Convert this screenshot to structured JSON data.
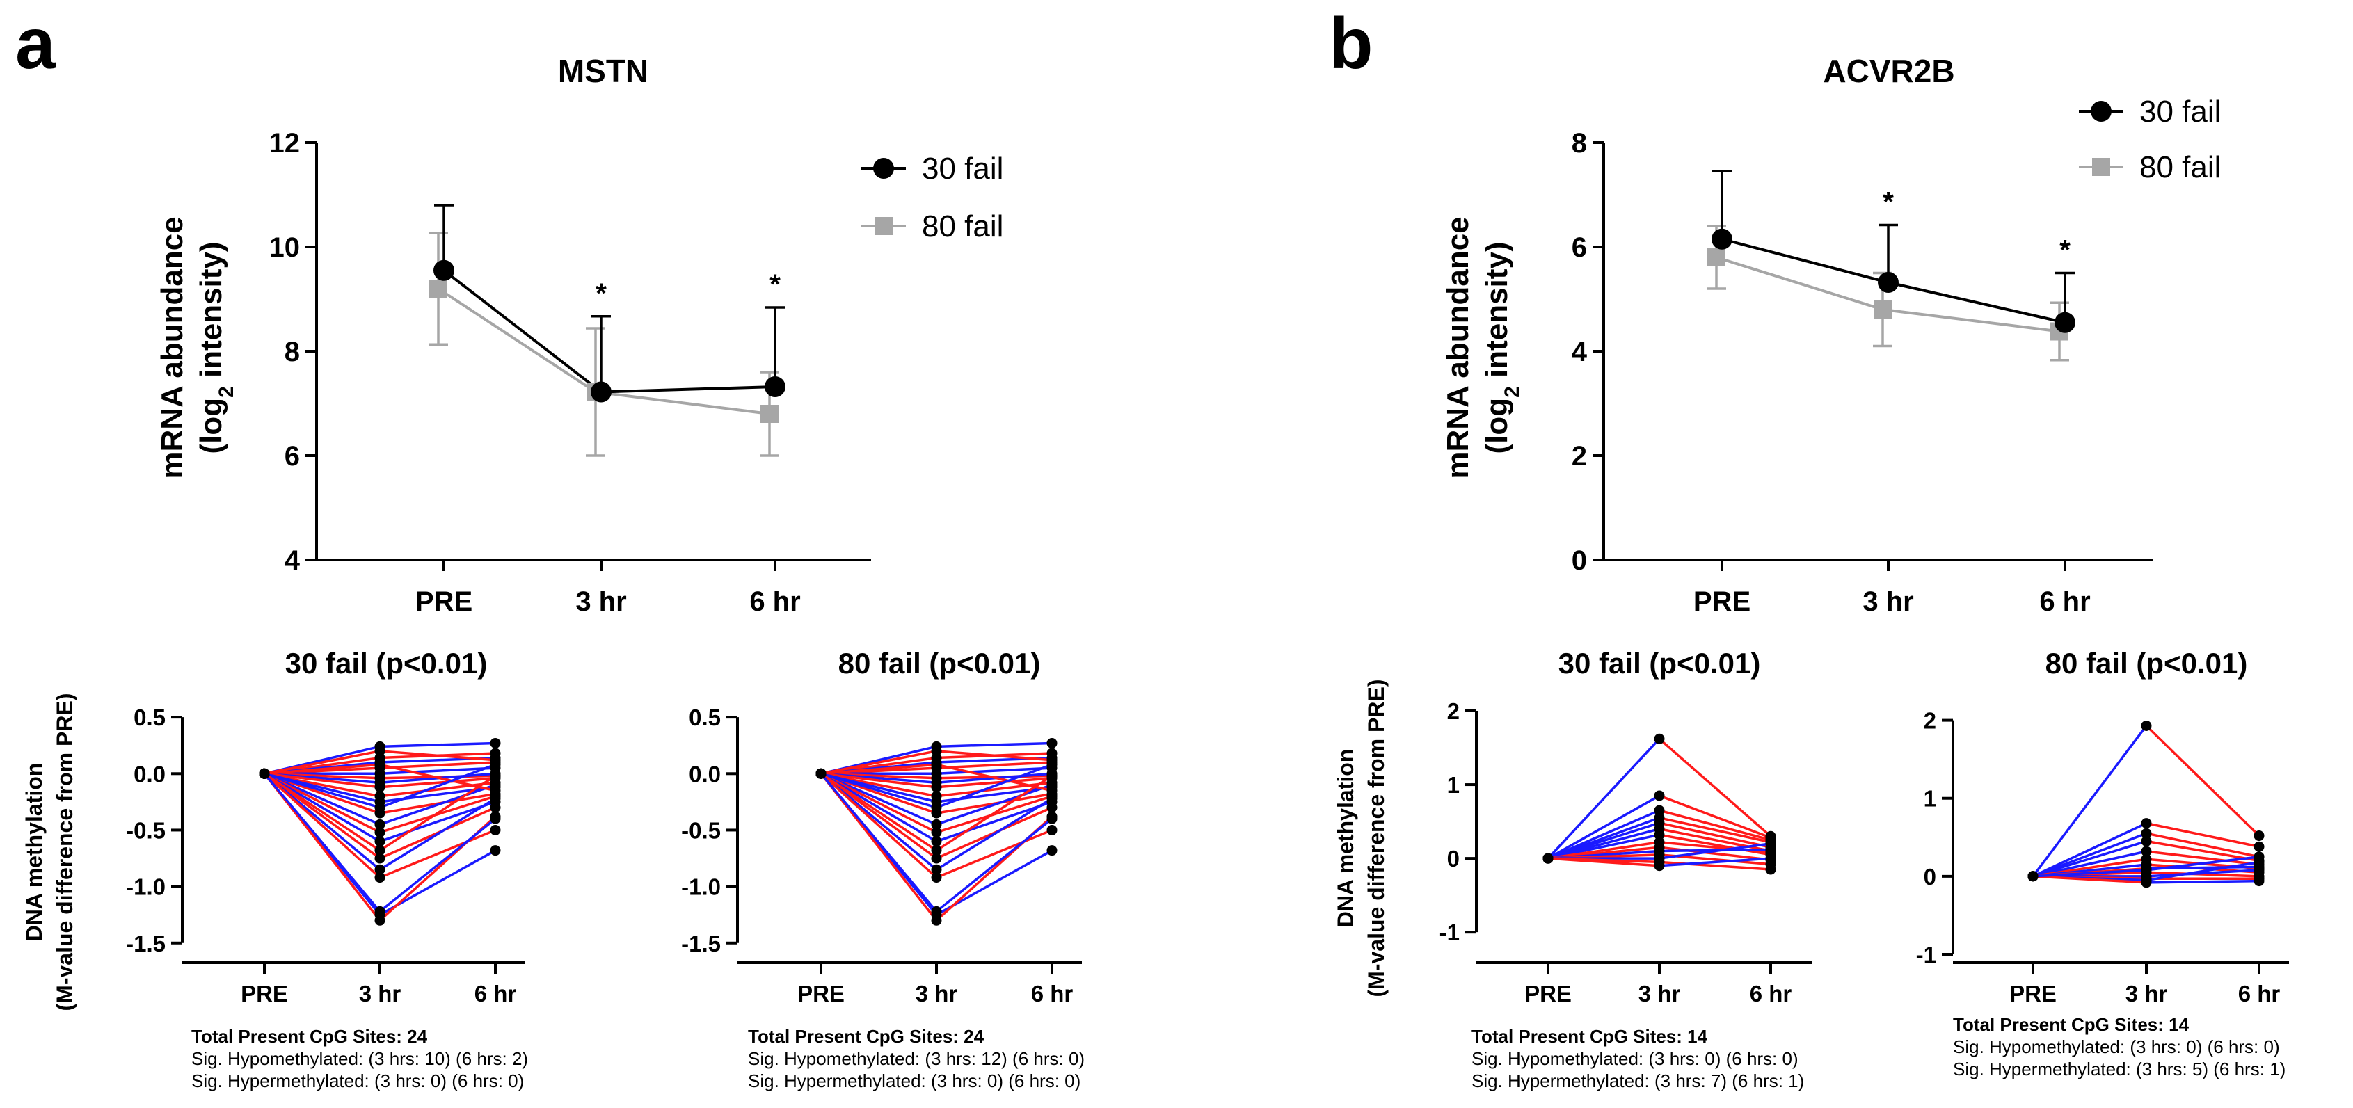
{
  "colors": {
    "black": "#000000",
    "gray": "#a6a6a6",
    "hypo": "#ff1a1a",
    "hyper": "#1a1aff"
  },
  "panel_a": {
    "letter": "a",
    "footnote": {
      "left": {
        "total": "Total Present CpG Sites: 24",
        "hypo": "Sig. Hypomethylated: (3 hrs: 10) (6 hrs: 2)",
        "hyper": "Sig. Hypermethylated: (3 hrs: 0) (6 hrs: 0)"
      },
      "right": {
        "total": "Total Present CpG Sites: 24",
        "hypo": "Sig. Hypomethylated: (3 hrs: 12) (6 hrs: 0)",
        "hyper": "Sig. Hypermethylated: (3 hrs: 0) (6 hrs: 0)"
      }
    }
  },
  "panel_b": {
    "letter": "b",
    "footnote": {
      "left": {
        "total": "Total Present CpG Sites: 14",
        "hypo": "Sig. Hypomethylated: (3 hrs: 0) (6 hrs: 0)",
        "hyper": "Sig. Hypermethylated: (3 hrs: 7) (6 hrs: 1)"
      },
      "right": {
        "total": "Total Present CpG Sites: 14",
        "hypo": "Sig. Hypomethylated: (3 hrs: 0) (6 hrs: 0)",
        "hyper": "Sig. Hypermethylated: (3 hrs: 5) (6 hrs: 1)"
      }
    }
  },
  "chart_data": [
    {
      "id": "mstn-mrna",
      "type": "line",
      "title": "MSTN",
      "xlabel": "",
      "ylabel": [
        "mRNA abundance",
        "(log",
        "2",
        " intensity)"
      ],
      "categories": [
        "PRE",
        "3 hr",
        "6 hr"
      ],
      "ylim": [
        4,
        12
      ],
      "yticks": [
        4,
        6,
        8,
        10,
        12
      ],
      "grid": false,
      "legend": "top-right",
      "series": [
        {
          "name": "30 fail",
          "marker": "circle",
          "color": "black",
          "values": [
            9.55,
            7.22,
            7.32
          ],
          "err": [
            1.25,
            1.45,
            1.52
          ]
        },
        {
          "name": "80 fail",
          "marker": "square",
          "color": "gray",
          "values": [
            9.2,
            7.22,
            6.8
          ],
          "err": [
            1.07,
            1.22,
            0.8
          ]
        }
      ],
      "annotations": [
        {
          "category": "3 hr",
          "text": "*"
        },
        {
          "category": "6 hr",
          "text": "*"
        }
      ]
    },
    {
      "id": "acvr2b-mrna",
      "type": "line",
      "title": "ACVR2B",
      "xlabel": "",
      "ylabel": [
        "mRNA abundance",
        "(log",
        "2",
        " intensity)"
      ],
      "categories": [
        "PRE",
        "3 hr",
        "6 hr"
      ],
      "ylim": [
        0,
        8
      ],
      "yticks": [
        0,
        2,
        4,
        6,
        8
      ],
      "grid": false,
      "legend": "top-right",
      "series": [
        {
          "name": "30 fail",
          "marker": "circle",
          "color": "black",
          "values": [
            6.15,
            5.32,
            4.55
          ],
          "err": [
            1.3,
            1.1,
            0.95
          ]
        },
        {
          "name": "80 fail",
          "marker": "square",
          "color": "gray",
          "values": [
            5.8,
            4.8,
            4.38
          ],
          "err": [
            0.6,
            0.7,
            0.55
          ]
        }
      ],
      "annotations": [
        {
          "category": "3 hr",
          "text": "*"
        },
        {
          "category": "6 hr",
          "text": "*"
        }
      ]
    },
    {
      "id": "mstn-meth-30",
      "type": "line",
      "title": "30 fail (p<0.01)",
      "ylabel": [
        "DNA methylation",
        "(M-value difference from PRE)"
      ],
      "categories": [
        "PRE",
        "3 hr",
        "6 hr"
      ],
      "ylim": [
        -1.6,
        0.55
      ],
      "yticks": [
        -1.5,
        -1.0,
        -0.5,
        0.0,
        0.5
      ],
      "tick_labels": [
        "-1.5",
        "-1.0",
        "-0.5",
        "0.0",
        "0.5"
      ],
      "grid": false,
      "series": [
        {
          "values": [
            0,
            0.24,
            0.27
          ],
          "color": "hyper"
        },
        {
          "values": [
            0,
            0.14,
            0.18
          ],
          "color": "hypo"
        },
        {
          "values": [
            0,
            0.1,
            0.14
          ],
          "color": "hyper"
        },
        {
          "values": [
            0,
            0.05,
            0.1
          ],
          "color": "hypo"
        },
        {
          "values": [
            0,
            0.0,
            0.05
          ],
          "color": "hyper"
        },
        {
          "values": [
            0,
            -0.04,
            -0.02
          ],
          "color": "hypo"
        },
        {
          "values": [
            0,
            -0.08,
            0.0
          ],
          "color": "hyper"
        },
        {
          "values": [
            0,
            -0.12,
            -0.04
          ],
          "color": "hypo"
        },
        {
          "values": [
            0,
            -0.2,
            -0.08
          ],
          "color": "hypo"
        },
        {
          "values": [
            0,
            -0.25,
            -0.12
          ],
          "color": "hyper"
        },
        {
          "values": [
            0,
            -0.35,
            -0.18
          ],
          "color": "hypo"
        },
        {
          "values": [
            0,
            -0.45,
            -0.1
          ],
          "color": "hyper"
        },
        {
          "values": [
            0,
            -0.52,
            -0.2
          ],
          "color": "hypo"
        },
        {
          "values": [
            0,
            -0.6,
            -0.25
          ],
          "color": "hyper"
        },
        {
          "values": [
            0,
            -0.75,
            -0.3
          ],
          "color": "hypo"
        },
        {
          "values": [
            0,
            -0.85,
            -0.22
          ],
          "color": "hyper"
        },
        {
          "values": [
            0,
            -0.92,
            -0.5
          ],
          "color": "hypo"
        },
        {
          "values": [
            0,
            -1.25,
            -0.68
          ],
          "color": "hyper"
        },
        {
          "values": [
            0,
            -1.3,
            -0.38
          ],
          "color": "hypo"
        },
        {
          "values": [
            0,
            0.08,
            -0.15
          ],
          "color": "hypo"
        },
        {
          "values": [
            0,
            -0.3,
            0.08
          ],
          "color": "hyper"
        },
        {
          "values": [
            0,
            -0.68,
            -0.02
          ],
          "color": "hypo"
        },
        {
          "values": [
            0,
            -1.22,
            -0.4
          ],
          "color": "hyper"
        },
        {
          "values": [
            0,
            0.2,
            0.12
          ],
          "color": "hypo"
        }
      ]
    },
    {
      "id": "mstn-meth-80",
      "type": "line",
      "title": "80 fail (p<0.01)",
      "ylabel": [],
      "categories": [
        "PRE",
        "3 hr",
        "6 hr"
      ],
      "ylim": [
        -1.6,
        0.55
      ],
      "yticks": [
        -1.5,
        -1.0,
        -0.5,
        0.0,
        0.5
      ],
      "tick_labels": [
        "-1.5",
        "-1.0",
        "-0.5",
        "0.0",
        "0.5"
      ],
      "grid": false,
      "series": [
        {
          "values": [
            0,
            0.24,
            0.27
          ],
          "color": "hyper"
        },
        {
          "values": [
            0,
            0.14,
            0.18
          ],
          "color": "hypo"
        },
        {
          "values": [
            0,
            0.1,
            0.14
          ],
          "color": "hyper"
        },
        {
          "values": [
            0,
            0.05,
            0.1
          ],
          "color": "hypo"
        },
        {
          "values": [
            0,
            0.0,
            0.05
          ],
          "color": "hyper"
        },
        {
          "values": [
            0,
            -0.04,
            -0.02
          ],
          "color": "hypo"
        },
        {
          "values": [
            0,
            -0.08,
            0.0
          ],
          "color": "hyper"
        },
        {
          "values": [
            0,
            -0.12,
            -0.04
          ],
          "color": "hypo"
        },
        {
          "values": [
            0,
            -0.2,
            -0.08
          ],
          "color": "hypo"
        },
        {
          "values": [
            0,
            -0.25,
            -0.12
          ],
          "color": "hyper"
        },
        {
          "values": [
            0,
            -0.35,
            -0.18
          ],
          "color": "hypo"
        },
        {
          "values": [
            0,
            -0.45,
            -0.1
          ],
          "color": "hyper"
        },
        {
          "values": [
            0,
            -0.52,
            -0.2
          ],
          "color": "hypo"
        },
        {
          "values": [
            0,
            -0.6,
            -0.25
          ],
          "color": "hyper"
        },
        {
          "values": [
            0,
            -0.75,
            -0.3
          ],
          "color": "hypo"
        },
        {
          "values": [
            0,
            -0.85,
            -0.22
          ],
          "color": "hyper"
        },
        {
          "values": [
            0,
            -0.92,
            -0.5
          ],
          "color": "hypo"
        },
        {
          "values": [
            0,
            -1.25,
            -0.68
          ],
          "color": "hyper"
        },
        {
          "values": [
            0,
            -1.3,
            -0.38
          ],
          "color": "hypo"
        },
        {
          "values": [
            0,
            0.08,
            -0.15
          ],
          "color": "hypo"
        },
        {
          "values": [
            0,
            -0.3,
            0.08
          ],
          "color": "hyper"
        },
        {
          "values": [
            0,
            -0.68,
            -0.02
          ],
          "color": "hypo"
        },
        {
          "values": [
            0,
            -1.22,
            -0.4
          ],
          "color": "hyper"
        },
        {
          "values": [
            0,
            0.2,
            0.12
          ],
          "color": "hypo"
        }
      ]
    },
    {
      "id": "acvr2b-meth-30",
      "type": "line",
      "title": "30 fail (p<0.01)",
      "ylabel": [
        "DNA methylation",
        "(M-value difference from PRE)"
      ],
      "categories": [
        "PRE",
        "3 hr",
        "6 hr"
      ],
      "ylim": [
        -1.3,
        2.0
      ],
      "yticks": [
        -1,
        0,
        1,
        2
      ],
      "tick_labels": [
        "-1",
        "0",
        "1",
        "2"
      ],
      "grid": false,
      "series": [
        {
          "values": [
            0,
            1.62,
            0.3
          ],
          "color": "hyper",
          "seg2": "hypo"
        },
        {
          "values": [
            0,
            0.85,
            0.28
          ],
          "color": "hyper",
          "seg2": "hypo"
        },
        {
          "values": [
            0,
            0.65,
            0.25
          ],
          "color": "hyper",
          "seg2": "hypo"
        },
        {
          "values": [
            0,
            0.55,
            0.22
          ],
          "color": "hyper",
          "seg2": "hypo"
        },
        {
          "values": [
            0,
            0.48,
            0.15
          ],
          "color": "hyper",
          "seg2": "hypo"
        },
        {
          "values": [
            0,
            0.4,
            0.1
          ],
          "color": "hyper",
          "seg2": "hypo"
        },
        {
          "values": [
            0,
            0.32,
            0.05
          ],
          "color": "hyper",
          "seg2": "hypo"
        },
        {
          "values": [
            0,
            0.22,
            0.08
          ],
          "color": "hypo",
          "seg2": "hypo"
        },
        {
          "values": [
            0,
            0.15,
            -0.02
          ],
          "color": "hypo",
          "seg2": "hypo"
        },
        {
          "values": [
            0,
            0.1,
            0.12
          ],
          "color": "hyper",
          "seg2": "hyper"
        },
        {
          "values": [
            0,
            0.05,
            -0.08
          ],
          "color": "hypo",
          "seg2": "hypo"
        },
        {
          "values": [
            0,
            0.0,
            0.2
          ],
          "color": "hyper",
          "seg2": "hyper"
        },
        {
          "values": [
            0,
            -0.05,
            -0.15
          ],
          "color": "hypo",
          "seg2": "hypo"
        },
        {
          "values": [
            0,
            -0.1,
            0.0
          ],
          "color": "hypo",
          "seg2": "hyper"
        }
      ]
    },
    {
      "id": "acvr2b-meth-80",
      "type": "line",
      "title": "80 fail (p<0.01)",
      "ylabel": [],
      "categories": [
        "PRE",
        "3 hr",
        "6 hr"
      ],
      "ylim": [
        -1.0,
        2.05
      ],
      "yticks": [
        -1,
        0,
        1,
        2
      ],
      "tick_labels": [
        "-1",
        "0",
        "1",
        "2"
      ],
      "grid": false,
      "series": [
        {
          "values": [
            0,
            1.93,
            0.52
          ],
          "color": "hyper",
          "seg2": "hypo"
        },
        {
          "values": [
            0,
            0.68,
            0.38
          ],
          "color": "hyper",
          "seg2": "hypo"
        },
        {
          "values": [
            0,
            0.55,
            0.25
          ],
          "color": "hyper",
          "seg2": "hypo"
        },
        {
          "values": [
            0,
            0.45,
            0.2
          ],
          "color": "hyper",
          "seg2": "hypo"
        },
        {
          "values": [
            0,
            0.32,
            0.15
          ],
          "color": "hyper",
          "seg2": "hypo"
        },
        {
          "values": [
            0,
            0.22,
            0.1
          ],
          "color": "hypo",
          "seg2": "hypo"
        },
        {
          "values": [
            0,
            0.15,
            0.05
          ],
          "color": "hyper",
          "seg2": "hypo"
        },
        {
          "values": [
            0,
            0.1,
            0.12
          ],
          "color": "hypo",
          "seg2": "hyper"
        },
        {
          "values": [
            0,
            0.05,
            0.0
          ],
          "color": "hypo",
          "seg2": "hypo"
        },
        {
          "values": [
            0,
            0.0,
            0.08
          ],
          "color": "hyper",
          "seg2": "hyper"
        },
        {
          "values": [
            0,
            -0.03,
            -0.03
          ],
          "color": "hypo",
          "seg2": "hypo"
        },
        {
          "values": [
            0,
            -0.05,
            0.18
          ],
          "color": "hyper",
          "seg2": "hyper"
        },
        {
          "values": [
            0,
            -0.08,
            -0.06
          ],
          "color": "hypo",
          "seg2": "hyper"
        },
        {
          "values": [
            0,
            0.08,
            0.25
          ],
          "color": "hyper",
          "seg2": "hyper"
        }
      ]
    }
  ]
}
